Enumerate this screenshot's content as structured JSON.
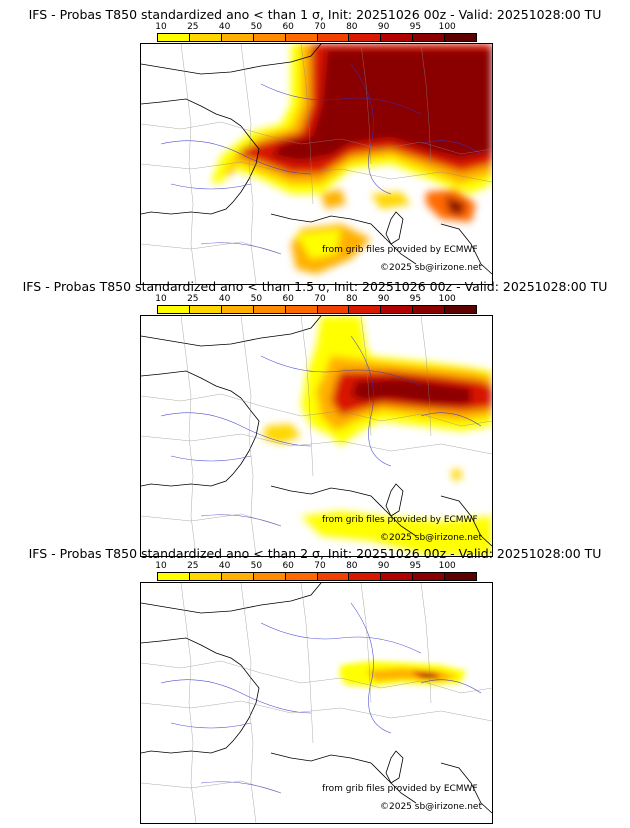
{
  "palette": [
    "#ffff00",
    "#ffd700",
    "#ffb000",
    "#ff8c00",
    "#ff6a00",
    "#f24000",
    "#d81800",
    "#b00000",
    "#8a0000",
    "#5c0000"
  ],
  "scale_ticks": [
    "10",
    "25",
    "40",
    "50",
    "60",
    "70",
    "80",
    "90",
    "95",
    "100"
  ],
  "credit_text": "from grib files provided by ECMWF",
  "copyright_text": "©2025 sb@irizone.net",
  "panels": [
    {
      "title": "IFS - Probas T850  standardized ano < than 1 σ, Init: 20251026 00z - Valid: 20251028:00 TU"
    },
    {
      "title": "IFS - Probas T850  standardized ano < than 1.5 σ, Init: 20251026 00z - Valid: 20251028:00 TU"
    },
    {
      "title": "IFS - Probas T850  standardized ano < than 2 σ, Init: 20251026 00z - Valid: 20251028:00 TU"
    }
  ]
}
